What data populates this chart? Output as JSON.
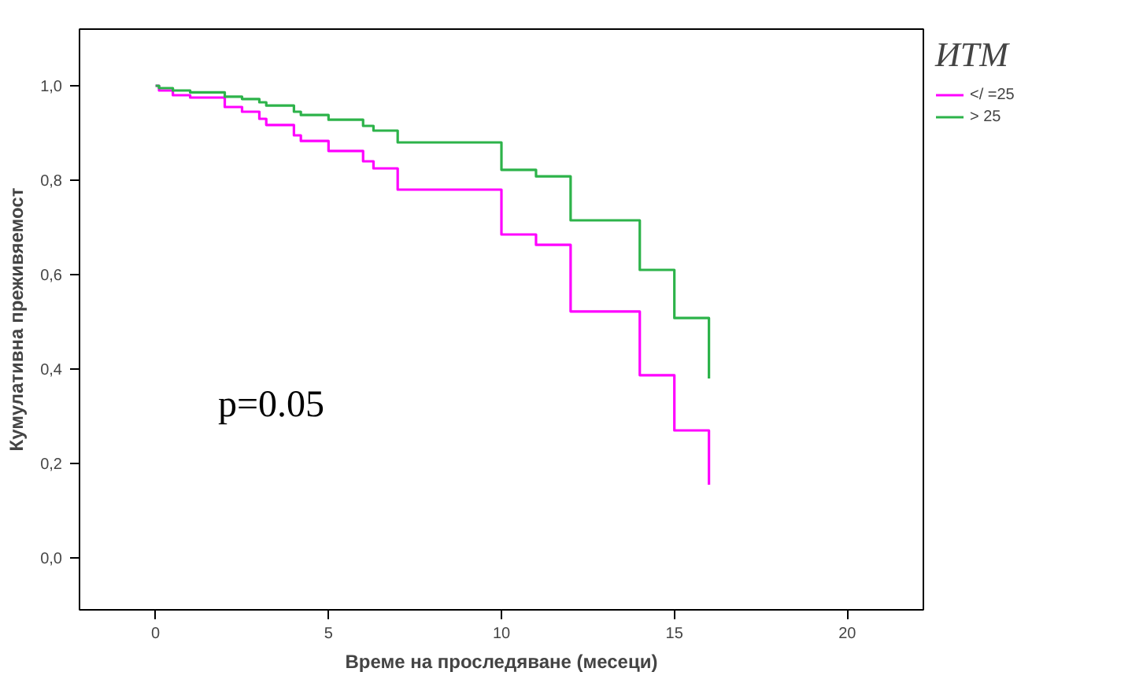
{
  "chart_data": {
    "type": "step",
    "xlabel": "Време на проследяване (месеци)",
    "ylabel": "Кумулативна преживяемост",
    "legend_title": "ИТМ",
    "legend": "top right",
    "grid": false,
    "marker": "none",
    "line_style": "solid",
    "xlim": [
      -2.2,
      22.2
    ],
    "xticks": [
      0,
      5,
      10,
      15,
      20
    ],
    "ylim": [
      -0.11,
      1.12
    ],
    "yticks": [
      {
        "value": 0,
        "label": "0,0"
      },
      {
        "value": 0.2,
        "label": "0,2"
      },
      {
        "value": 0.4,
        "label": "0,4"
      },
      {
        "value": 0.6,
        "label": "0,6"
      },
      {
        "value": 0.8,
        "label": "0,8"
      },
      {
        "value": 1,
        "label": "1,0"
      }
    ],
    "annotations": [
      "p=0.05"
    ],
    "series": [
      {
        "name": "</ =25",
        "color": "#ff00ff",
        "x": [
          0,
          0.1,
          0.5,
          1,
          2,
          2.5,
          3,
          3.2,
          4,
          4.2,
          5,
          6,
          6.3,
          7,
          10,
          11,
          12,
          14,
          15,
          16,
          16
        ],
        "values": [
          1.0,
          0.99,
          0.98,
          0.975,
          0.955,
          0.945,
          0.93,
          0.917,
          0.895,
          0.883,
          0.862,
          0.84,
          0.825,
          0.78,
          0.685,
          0.663,
          0.522,
          0.387,
          0.27,
          0.155,
          0.155
        ]
      },
      {
        "name": "> 25",
        "color": "#2db34a",
        "x": [
          0,
          0.1,
          0.5,
          1,
          2,
          2.5,
          3,
          3.2,
          4,
          4.2,
          5,
          6,
          6.3,
          7,
          10,
          11,
          12,
          14,
          15,
          16,
          16
        ],
        "values": [
          1.0,
          0.995,
          0.99,
          0.986,
          0.977,
          0.972,
          0.965,
          0.958,
          0.945,
          0.938,
          0.928,
          0.915,
          0.905,
          0.88,
          0.822,
          0.808,
          0.715,
          0.61,
          0.508,
          0.38,
          0.38
        ]
      }
    ]
  }
}
